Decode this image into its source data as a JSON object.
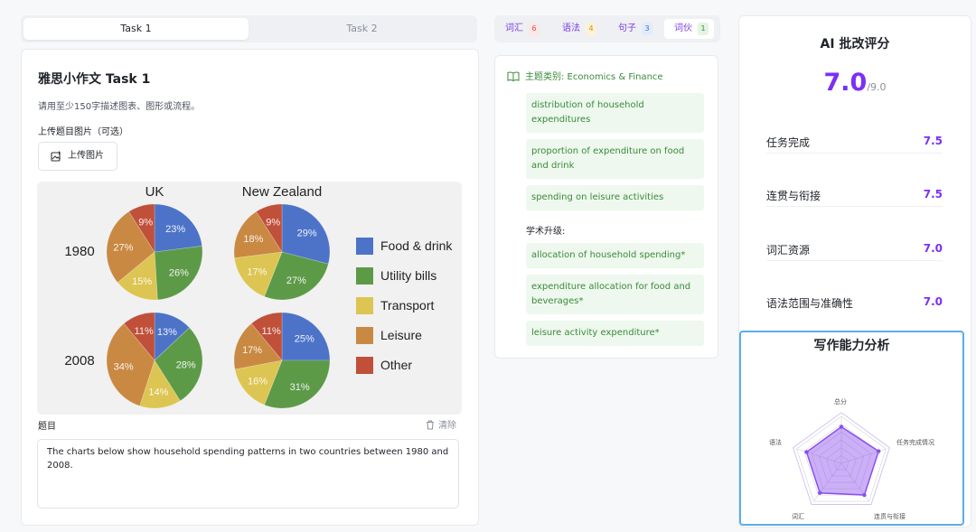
{
  "tabs": [
    {
      "label": "Task 1",
      "active": true
    },
    {
      "label": "Task 2",
      "active": false
    }
  ],
  "task": {
    "title": "雅思小作文 Task 1",
    "description": "请用至少150字描述图表、图形或流程。",
    "upload_label": "上传题目图片（可选）",
    "upload_button": "上传图片",
    "prompt_label": "题目",
    "clear_label": "清除",
    "prompt_text": "The charts below show household spending patterns in two countries between 1980 and 2008."
  },
  "chart_data": {
    "type": "pie",
    "columns": [
      "UK",
      "New Zealand"
    ],
    "rows": [
      "1980",
      "2008"
    ],
    "categories": [
      "Food & drink",
      "Utility bills",
      "Transport",
      "Leisure",
      "Other"
    ],
    "colors": [
      "#4d73c8",
      "#5d9a48",
      "#dcc552",
      "#c98943",
      "#c0503a"
    ],
    "pies": [
      {
        "country": "UK",
        "year": "1980",
        "values": [
          23,
          26,
          15,
          27,
          9
        ]
      },
      {
        "country": "New Zealand",
        "year": "1980",
        "values": [
          29,
          27,
          17,
          18,
          9
        ]
      },
      {
        "country": "UK",
        "year": "2008",
        "values": [
          13,
          28,
          14,
          34,
          11
        ]
      },
      {
        "country": "New Zealand",
        "year": "2008",
        "values": [
          25,
          31,
          16,
          17,
          11
        ]
      }
    ]
  },
  "vocab_tabs": [
    {
      "label": "词汇",
      "count": "6",
      "color": "#e84a4a",
      "bg": "#fde8e8",
      "active": false
    },
    {
      "label": "语法",
      "count": "4",
      "color": "#c9901a",
      "bg": "#fdf2d8",
      "active": false
    },
    {
      "label": "句子",
      "count": "3",
      "color": "#3a6fd1",
      "bg": "#e2ebfb",
      "active": false
    },
    {
      "label": "词伙",
      "count": "1",
      "color": "#3a8a3a",
      "bg": "#e3f4e3",
      "active": true
    }
  ],
  "collocations": {
    "topic_label": "主题类别: Economics & Finance",
    "phrases": [
      "distribution of household expenditures",
      "proportion of expenditure on food and drink",
      "spending on leisure activities"
    ],
    "academic_label": "学术升级:",
    "academic_phrases": [
      "allocation of household spending*",
      "expenditure allocation for food and beverages*",
      "leisure activity expenditure*"
    ]
  },
  "score": {
    "title": "AI 批改评分",
    "overall": "7.0",
    "max": "/9.0",
    "criteria": [
      {
        "name": "任务完成",
        "score": "7.5"
      },
      {
        "name": "连贯与衔接",
        "score": "7.5"
      },
      {
        "name": "词汇资源",
        "score": "7.0"
      },
      {
        "name": "语法范围与准确性",
        "score": "7.0"
      }
    ]
  },
  "radar": {
    "title": "写作能力分析",
    "axes": [
      "总分",
      "任务完成情况",
      "连贯与衔接",
      "词汇",
      "语法"
    ],
    "values": [
      7.0,
      7.5,
      7.5,
      7.0,
      7.0
    ],
    "max": 9,
    "color": "#8b4ff0"
  },
  "colors": {
    "accent": "#7b2ff7",
    "green": "#3a8a3a",
    "radar_border": "#5aaee8"
  }
}
